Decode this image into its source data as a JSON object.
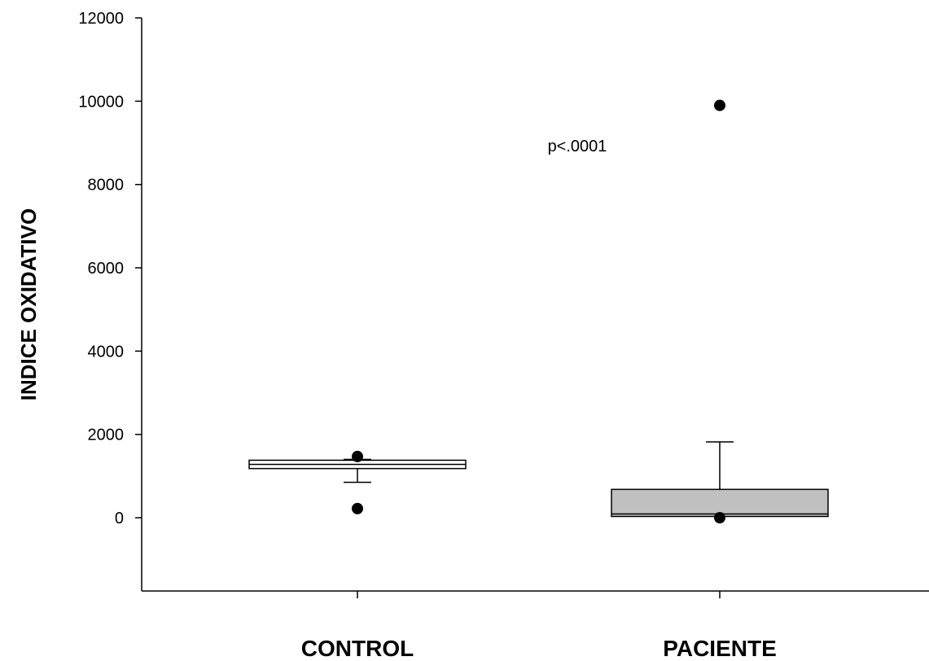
{
  "chart_data": {
    "type": "box",
    "ylabel": "INDICE OXIDATIVO",
    "xlabel": "",
    "ylim": [
      -1750,
      12000
    ],
    "yticks": [
      0,
      2000,
      4000,
      6000,
      8000,
      10000,
      12000
    ],
    "ytick_labels": [
      "0",
      "2000",
      "4000",
      "6000",
      "8000",
      "10000",
      "12000"
    ],
    "categories": [
      "CONTROL",
      "PACIENTE"
    ],
    "annotation": "p<.0001",
    "grid": false,
    "boxes": [
      {
        "name": "CONTROL",
        "color": "#ffffff",
        "whisker_low": 850,
        "q1": 1180,
        "median": 1280,
        "q3": 1380,
        "whisker_high": 1400,
        "outliers": [
          220,
          1470
        ]
      },
      {
        "name": "PACIENTE",
        "color": "#c0c0c0",
        "whisker_low": 30,
        "q1": 30,
        "median": 90,
        "q3": 680,
        "whisker_high": 1820,
        "outliers": [
          0,
          9900
        ]
      }
    ]
  }
}
